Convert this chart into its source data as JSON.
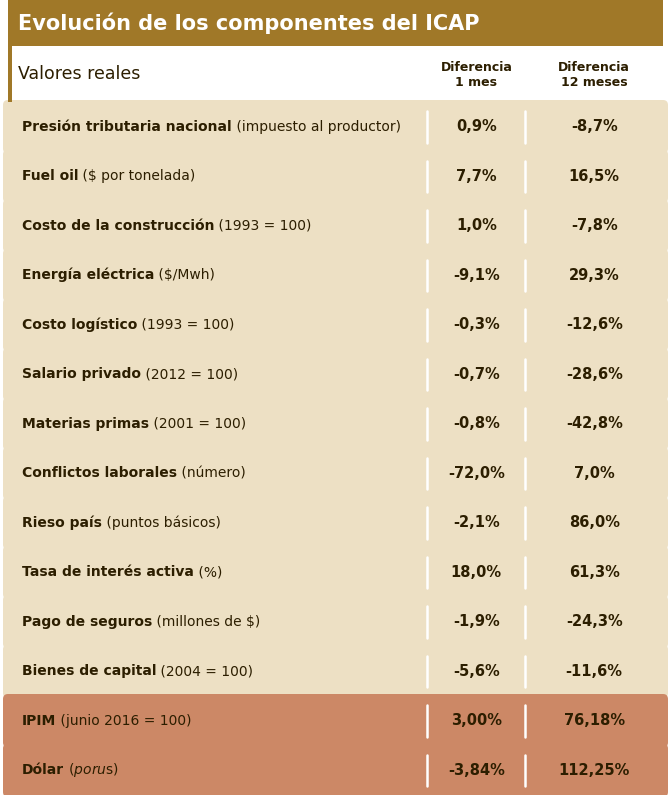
{
  "title": "Evolución de los componentes del ICAP",
  "subtitle": "Valores reales",
  "col1_header_line1": "Diferencia",
  "col1_header_line2": "1 mes",
  "col2_header_line1": "Diferencia",
  "col2_header_line2": "12 meses",
  "rows": [
    {
      "label_bold": "Presión tributaria nacional",
      "label_normal": " (impuesto al productor)",
      "val1": "0,9%",
      "val2": "-8,7%",
      "highlight": false
    },
    {
      "label_bold": "Fuel oil",
      "label_normal": " ($ por tonelada)",
      "val1": "7,7%",
      "val2": "16,5%",
      "highlight": false
    },
    {
      "label_bold": "Costo de la construcción",
      "label_normal": " (1993 = 100)",
      "val1": "1,0%",
      "val2": "-7,8%",
      "highlight": false
    },
    {
      "label_bold": "Energía eléctrica",
      "label_normal": " ($/Mwh)",
      "val1": "-9,1%",
      "val2": "29,3%",
      "highlight": false
    },
    {
      "label_bold": "Costo logístico",
      "label_normal": " (1993 = 100)",
      "val1": "-0,3%",
      "val2": "-12,6%",
      "highlight": false
    },
    {
      "label_bold": "Salario privado",
      "label_normal": " (2012 = 100)",
      "val1": "-0,7%",
      "val2": "-28,6%",
      "highlight": false
    },
    {
      "label_bold": "Materias primas",
      "label_normal": " (2001 = 100)",
      "val1": "-0,8%",
      "val2": "-42,8%",
      "highlight": false
    },
    {
      "label_bold": "Conflictos laborales",
      "label_normal": " (número)",
      "val1": "-72,0%",
      "val2": "7,0%",
      "highlight": false
    },
    {
      "label_bold": "Rieso país",
      "label_normal": " (puntos básicos)",
      "val1": "-2,1%",
      "val2": "86,0%",
      "highlight": false
    },
    {
      "label_bold": "Tasa de interés activa",
      "label_normal": " (%)",
      "val1": "18,0%",
      "val2": "61,3%",
      "highlight": false
    },
    {
      "label_bold": "Pago de seguros",
      "label_normal": " (millones de $)",
      "val1": "-1,9%",
      "val2": "-24,3%",
      "highlight": false
    },
    {
      "label_bold": "Bienes de capital",
      "label_normal": " (2004 = 100)",
      "val1": "-5,6%",
      "val2": "-11,6%",
      "highlight": false
    },
    {
      "label_bold": "IPIM",
      "label_normal": " (junio 2016 = 100)",
      "val1": "3,00%",
      "val2": "76,18%",
      "highlight": true
    },
    {
      "label_bold": "Dólar",
      "label_normal": " ($ por u$s)",
      "val1": "-3,84%",
      "val2": "112,25%",
      "highlight": true
    }
  ],
  "title_bg": "#A07828",
  "title_fg": "#FFFFFF",
  "row_bg_normal": "#EDE0C4",
  "row_bg_highlight": "#CC8866",
  "row_fg": "#2C1E00",
  "header_bg": "#FFFFFF",
  "accent_bar": "#A07828",
  "divider_color": "#FFFFFF",
  "fig_bg": "#FFFFFF",
  "gap_color": "#FFFFFF"
}
